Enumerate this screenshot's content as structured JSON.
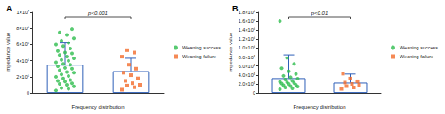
{
  "chart_data": [
    {
      "type": "bar",
      "title": "A",
      "x_label": "Frequency distribution",
      "y_label": "Impedance value",
      "categories": [
        null,
        null
      ],
      "values": [
        3500000,
        2700000
      ],
      "errors": [
        2700000,
        1600000
      ],
      "color": "#2e5fb8",
      "ylim": [
        0,
        10000000
      ],
      "yticks": [
        0,
        {
          "value": 2000000,
          "label": "2×10⁶"
        },
        {
          "value": 4000000,
          "label": "4×10⁶"
        },
        {
          "value": 6000000,
          "label": "6×10⁶"
        },
        {
          "value": 8000000,
          "label": "8×10⁶"
        },
        {
          "value": 10000000,
          "label": "1×10⁷"
        }
      ],
      "grid": false,
      "legend": "right",
      "annotations": [
        {
          "text": "p<0.001"
        }
      ],
      "series": [
        {
          "name": "Weaning success",
          "type": "scatter",
          "color": "#2ebd4e",
          "marker": "circle",
          "values": [
            [
              300000,
              500000,
              600000,
              800000,
              1000000,
              1100000,
              1200000,
              1400000,
              1500000,
              1600000,
              1800000,
              2000000,
              2100000,
              2300000,
              2500000,
              2600000,
              2800000,
              3000000,
              3100000,
              3300000,
              3500000,
              3600000,
              3800000,
              4000000,
              4100000,
              4300000,
              4500000,
              4700000,
              4900000,
              5000000,
              5200000,
              5500000,
              5800000,
              6000000,
              6200000,
              6500000,
              6800000,
              7200000,
              7500000,
              7900000
            ],
            []
          ]
        },
        {
          "name": "Weaning failure",
          "type": "scatter",
          "color": "#f26b2a",
          "marker": "square",
          "values": [
            [],
            [
              400000,
              700000,
              900000,
              1000000,
              1200000,
              1500000,
              1800000,
              2200000,
              2500000,
              3000000,
              3500000,
              4500000,
              5000000,
              5300000
            ]
          ]
        }
      ]
    },
    {
      "type": "bar",
      "title": "B",
      "x_label": "Frequency distribution",
      "y_label": "Impedance value",
      "categories": [
        null,
        null
      ],
      "values": [
        330000,
        230000
      ],
      "errors": [
        520000,
        190000
      ],
      "color": "#2e5fb8",
      "ylim": [
        0,
        1800000
      ],
      "yticks": [
        0,
        {
          "value": 200000,
          "label": "2.0×10⁵"
        },
        {
          "value": 400000,
          "label": "4.0×10⁵"
        },
        {
          "value": 600000,
          "label": "6.0×10⁵"
        },
        {
          "value": 800000,
          "label": "8.0×10⁵"
        },
        {
          "value": 1000000,
          "label": "1.0×10⁶"
        },
        {
          "value": 1200000,
          "label": "1.2×10⁶"
        },
        {
          "value": 1400000,
          "label": "1.4×10⁶"
        },
        {
          "value": 1600000,
          "label": "1.6×10⁶"
        },
        {
          "value": 1800000,
          "label": "1.8×10⁶"
        }
      ],
      "grid": false,
      "legend": "right",
      "annotations": [
        {
          "text": "p<0.01"
        }
      ],
      "series": [
        {
          "name": "Weaning success",
          "type": "scatter",
          "color": "#2ebd4e",
          "marker": "circle",
          "values": [
            [
              80000,
              100000,
              120000,
              140000,
              150000,
              170000,
              180000,
              200000,
              210000,
              220000,
              240000,
              250000,
              270000,
              300000,
              320000,
              350000,
              380000,
              420000,
              480000,
              550000,
              650000,
              780000,
              1600000
            ],
            []
          ]
        },
        {
          "name": "Weaning failure",
          "type": "scatter",
          "color": "#f26b2a",
          "marker": "square",
          "values": [
            [],
            [
              90000,
              120000,
              150000,
              180000,
              200000,
              230000,
              260000,
              320000,
              430000
            ]
          ]
        }
      ]
    }
  ]
}
